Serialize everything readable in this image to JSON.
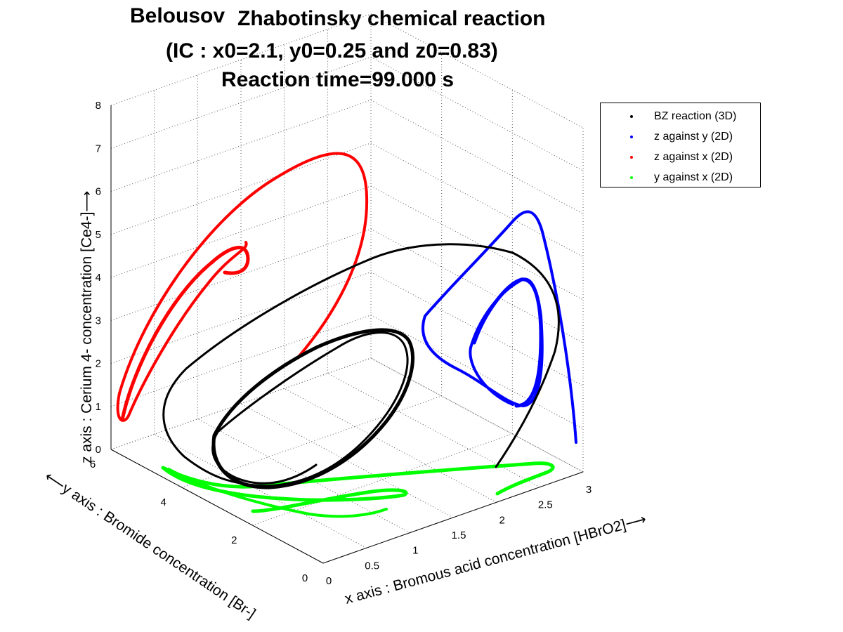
{
  "chart_data": {
    "type": "line",
    "title_part1": "Belousov",
    "title_part2": "Zhabotinsky chemical reaction",
    "title_line2": "(IC : x0=2.1, y0=0.25 and z0=0.83)",
    "title_line3": "Reaction time=99.000 s",
    "xlabel": "x axis : Bromous acid concentration [HBrO2]⟶",
    "ylabel": "⟵y axis : Bromide concentration [Br-]",
    "zlabel": "z axis : Cerium 4- concentration [Ce4-]⟶",
    "xlim": [
      0,
      3
    ],
    "ylim": [
      0,
      6
    ],
    "zlim": [
      0,
      8
    ],
    "x_ticks": [
      "0",
      "0.5",
      "1",
      "1.5",
      "2",
      "2.5",
      "3"
    ],
    "y_ticks": [
      "0",
      "2",
      "4",
      "6"
    ],
    "z_ticks": [
      "0",
      "1",
      "2",
      "3",
      "4",
      "5",
      "6",
      "7",
      "8"
    ],
    "grid": true,
    "legend_position": "top-right",
    "series": [
      {
        "name": "BZ reaction (3D)",
        "color": "#000000"
      },
      {
        "name": "z against y (2D)",
        "color": "#0000ff"
      },
      {
        "name": "z against x (2D)",
        "color": "#ff0000"
      },
      {
        "name": "y against x (2D)",
        "color": "#00ff00"
      }
    ]
  }
}
